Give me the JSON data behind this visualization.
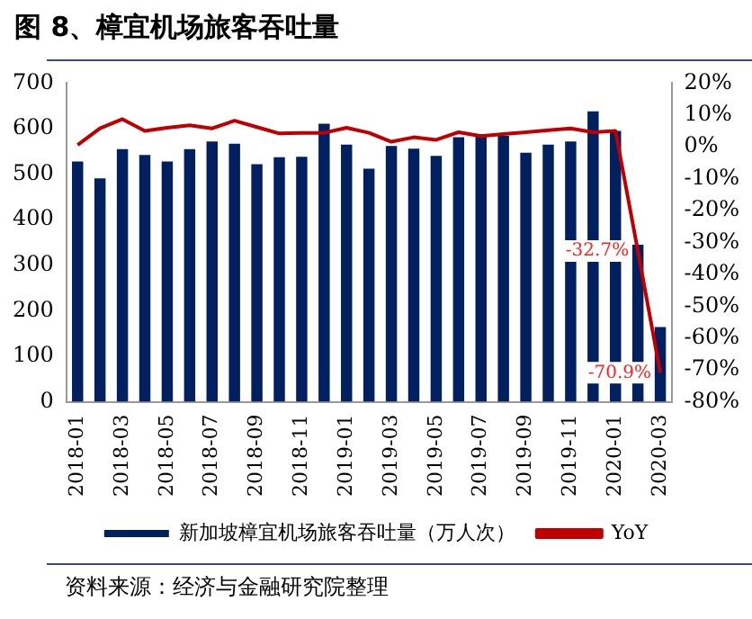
{
  "chart_data": {
    "type": "bar",
    "title": "图 8、樟宜机场旅客吞吐量",
    "categories": [
      "2018-01",
      null,
      "2018-03",
      null,
      "2018-05",
      null,
      "2018-07",
      null,
      "2018-09",
      null,
      "2018-11",
      null,
      "2019-01",
      null,
      "2019-03",
      null,
      "2019-05",
      null,
      "2019-07",
      null,
      "2019-09",
      null,
      "2019-11",
      null,
      "2020-01",
      null,
      "2020-03"
    ],
    "series": [
      {
        "name": "新加坡樟宜机场旅客吞吐量（万人次）",
        "color": "#002060",
        "values": [
          528,
          491,
          555,
          542,
          528,
          555,
          572,
          567,
          522,
          537,
          538,
          611,
          565,
          512,
          562,
          556,
          540,
          581,
          588,
          584,
          547,
          565,
          572,
          638,
          595,
          345,
          164
        ]
      },
      {
        "name": "YoY",
        "type": "line",
        "axis": "y2",
        "color": "#c00000",
        "values": [
          0.6,
          5.8,
          8.7,
          5.0,
          6.0,
          6.8,
          5.8,
          8.2,
          6.2,
          4.2,
          4.4,
          4.4,
          6.0,
          4.4,
          1.6,
          3.0,
          2.2,
          4.6,
          3.4,
          4.0,
          4.6,
          5.2,
          5.8,
          4.6,
          5.0,
          -32.7,
          -70.9
        ],
        "value_labels": [
          null,
          null,
          null,
          null,
          null,
          null,
          null,
          null,
          null,
          null,
          null,
          null,
          null,
          null,
          null,
          null,
          null,
          null,
          null,
          null,
          null,
          null,
          null,
          null,
          null,
          "-32.7%",
          "-70.9%"
        ]
      }
    ],
    "ylim": [
      0,
      700
    ],
    "yticks": [
      0,
      100,
      200,
      300,
      400,
      500,
      600,
      700
    ],
    "y2lim": [
      -80,
      20
    ],
    "y2ticks": [
      {
        "value": 20,
        "label": "20%"
      },
      {
        "value": 10,
        "label": "10%"
      },
      {
        "value": 0,
        "label": "0%"
      },
      {
        "value": -10,
        "label": "-10%"
      },
      {
        "value": -20,
        "label": "-20%"
      },
      {
        "value": -30,
        "label": "-30%"
      },
      {
        "value": -40,
        "label": "-40%"
      },
      {
        "value": -50,
        "label": "-50%"
      },
      {
        "value": -60,
        "label": "-60%"
      },
      {
        "value": -70,
        "label": "-70%"
      },
      {
        "value": -80,
        "label": "-80%"
      }
    ],
    "grid": false,
    "legend": "bottom",
    "marker": "none",
    "line_style": "solid",
    "annotations": [
      "资料来源：经济与金融研究院整理"
    ]
  }
}
